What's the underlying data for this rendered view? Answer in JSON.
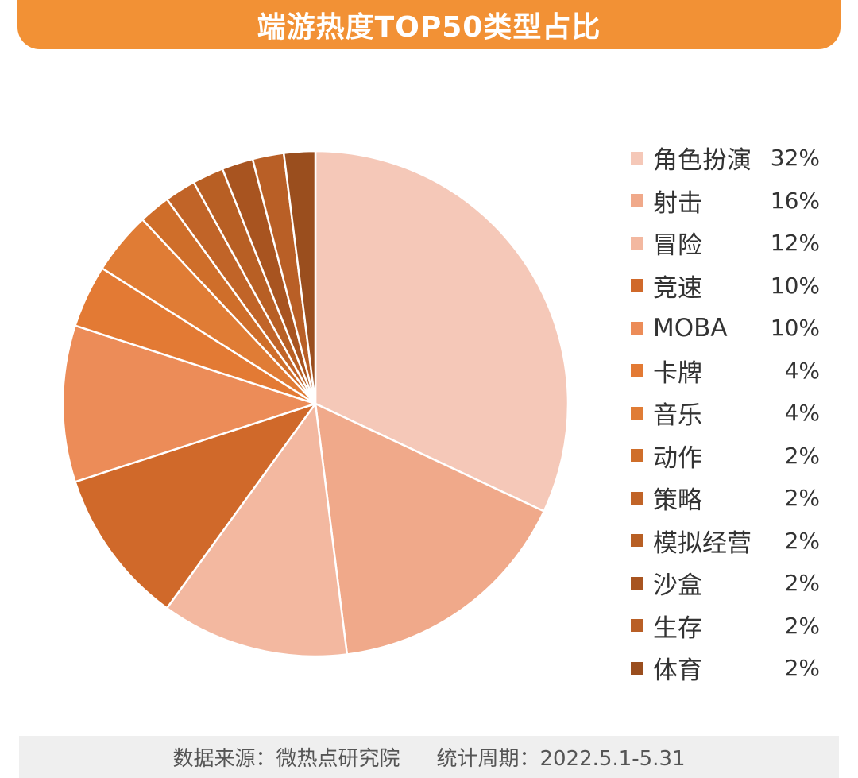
{
  "title": "端游热度TOP50类型占比",
  "footer": {
    "source": "数据来源：微热点研究院",
    "period": "统计周期：2022.5.1-5.31"
  },
  "chart_data": {
    "type": "pie",
    "legend_position": "right",
    "categories": [
      "角色扮演",
      "射击",
      "冒险",
      "竞速",
      "MOBA",
      "卡牌",
      "音乐",
      "动作",
      "策略",
      "模拟经营",
      "沙盒",
      "生存",
      "体育"
    ],
    "values": [
      32,
      16,
      12,
      10,
      10,
      4,
      4,
      2,
      2,
      2,
      2,
      2,
      2
    ],
    "value_labels": [
      "32%",
      "16%",
      "12%",
      "10%",
      "10%",
      "4%",
      "4%",
      "2%",
      "2%",
      "2%",
      "2%",
      "2%",
      "2%"
    ],
    "colors": [
      "#f5c8b8",
      "#f0a98a",
      "#f3b8a0",
      "#d0692a",
      "#ec8c58",
      "#e37a34",
      "#e07c35",
      "#cf6e2a",
      "#c16428",
      "#b85f24",
      "#a85420",
      "#b95f26",
      "#9a4e1e"
    ]
  }
}
